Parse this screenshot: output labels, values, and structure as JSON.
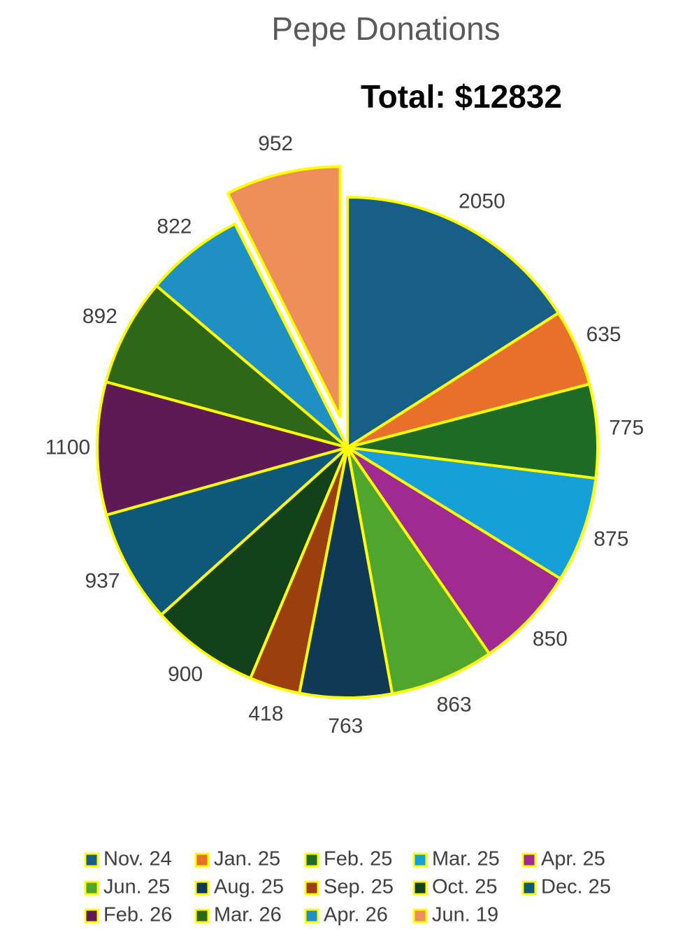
{
  "chart_data": {
    "type": "pie",
    "title": "Pepe Donations",
    "annotation": "Total: $12832",
    "categories": [
      "Nov. 24",
      "Jan. 25",
      "Feb. 25",
      "Mar. 25",
      "Apr. 25",
      "Jun. 25",
      "Aug. 25",
      "Sep. 25",
      "Oct. 25",
      "Dec. 25",
      "Feb. 26",
      "Mar. 26",
      "Apr. 26",
      "Jun. 19"
    ],
    "values": [
      2050,
      635,
      775,
      875,
      850,
      863,
      763,
      418,
      900,
      937,
      1100,
      892,
      822,
      952
    ],
    "colors": [
      "#175f86",
      "#e8702a",
      "#1d6b24",
      "#15a0d8",
      "#a02b90",
      "#50a62d",
      "#0f3a55",
      "#9a3f0d",
      "#13421a",
      "#0e587a",
      "#5e1a55",
      "#2f6719",
      "#1e90c4",
      "#ee8e5b"
    ],
    "legend": "bottom"
  }
}
